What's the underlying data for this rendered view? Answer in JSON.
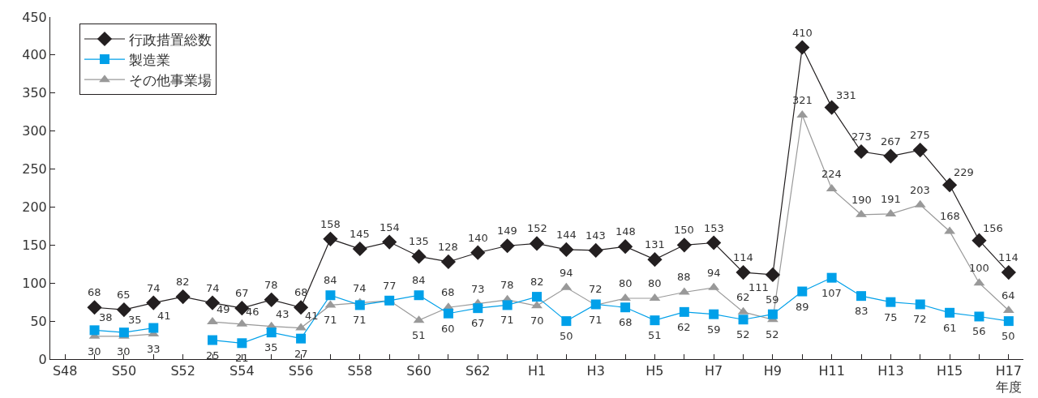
{
  "chart_data": {
    "type": "line",
    "xlabel": "年度",
    "categories": [
      "S48",
      null,
      "S50",
      null,
      "S52",
      null,
      "S54",
      null,
      "S56",
      null,
      "S58",
      null,
      "S60",
      null,
      "S62",
      null,
      "H1",
      null,
      "H3",
      null,
      "H5",
      null,
      "H7",
      null,
      "H9",
      null,
      "H11",
      null,
      "H13",
      null,
      "H15",
      null,
      "H17"
    ],
    "series": [
      {
        "name": "行政措置総数",
        "color": "#231f20",
        "marker": "diamond",
        "values": [
          null,
          68,
          65,
          74,
          82,
          74,
          67,
          78,
          68,
          158,
          145,
          154,
          135,
          128,
          140,
          149,
          152,
          144,
          143,
          148,
          131,
          150,
          153,
          114,
          111,
          410,
          331,
          273,
          267,
          275,
          229,
          156,
          114
        ]
      },
      {
        "name": "製造業",
        "color": "#00a0e9",
        "marker": "square",
        "values": [
          null,
          38,
          35,
          41,
          null,
          25,
          21,
          35,
          27,
          84,
          71,
          77,
          84,
          60,
          67,
          71,
          82,
          50,
          72,
          68,
          51,
          62,
          59,
          52,
          59,
          89,
          107,
          83,
          75,
          72,
          61,
          56,
          50
        ]
      },
      {
        "name": "その他事業場",
        "color": "#999999",
        "marker": "triangle",
        "values": [
          null,
          30,
          30,
          33,
          null,
          49,
          46,
          43,
          41,
          71,
          74,
          77,
          51,
          68,
          73,
          78,
          70,
          94,
          71,
          80,
          80,
          88,
          94,
          62,
          52,
          321,
          224,
          190,
          191,
          203,
          168,
          100,
          64
        ],
        "value_labels": [
          null,
          "30",
          "30",
          "33",
          null,
          "49",
          "46",
          "43",
          "41",
          "71",
          "74",
          null,
          "51",
          "68",
          "73",
          "78",
          "70",
          "94",
          "71",
          "80",
          "80",
          "88",
          "94",
          "62",
          "52",
          "321",
          "224",
          "190",
          "191",
          "203",
          "168",
          "100",
          "64"
        ]
      }
    ],
    "ylim": [
      0,
      450
    ],
    "yticks": [
      0,
      50,
      100,
      150,
      200,
      250,
      300,
      350,
      400,
      450
    ],
    "legend": "top left",
    "data_labels": true,
    "line_style": "solid"
  }
}
